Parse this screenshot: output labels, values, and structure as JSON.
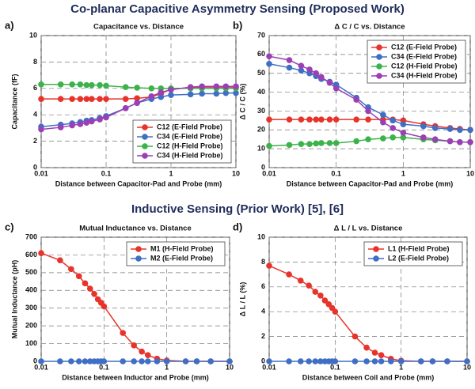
{
  "headings": [
    "Co-planar Capacitive Asymmetry Sensing (Proposed Work)",
    "Inductive Sensing (Prior Work) [5], [6]"
  ],
  "chart_data": [
    {
      "type": "line",
      "label": "a)",
      "title": "Capacitance vs. Distance",
      "xlabel": "Distance between Capacitor-Pad and Probe (mm)",
      "ylabel": "Capacitance (fF)",
      "xscale": "log",
      "xlim": [
        0.01,
        10
      ],
      "xticks": [
        0.01,
        0.1,
        1,
        10
      ],
      "ylim": [
        0,
        10
      ],
      "yticks": [
        0,
        2,
        4,
        6,
        8,
        10
      ],
      "grid": true,
      "legend": "lower right",
      "x": [
        0.01,
        0.02,
        0.03,
        0.04,
        0.05,
        0.06,
        0.08,
        0.1,
        0.2,
        0.3,
        0.5,
        0.7,
        1,
        2,
        3,
        5,
        7,
        10
      ],
      "series": [
        {
          "name": "C12 (E-Field Probe)",
          "color": "#e8332a",
          "values": [
            5.2,
            5.2,
            5.2,
            5.2,
            5.2,
            5.2,
            5.2,
            5.2,
            5.2,
            5.25,
            5.35,
            5.6,
            5.95,
            6.05,
            6.1,
            6.1,
            6.1,
            6.1
          ]
        },
        {
          "name": "C34 (E-Field Probe)",
          "color": "#3f6fc4",
          "values": [
            3.1,
            3.25,
            3.35,
            3.45,
            3.55,
            3.6,
            3.75,
            3.9,
            4.5,
            4.9,
            5.2,
            5.35,
            5.5,
            5.55,
            5.6,
            5.6,
            5.65,
            5.65
          ]
        },
        {
          "name": "C12 (H-Field Probe)",
          "color": "#3cb34a",
          "values": [
            6.3,
            6.3,
            6.3,
            6.3,
            6.25,
            6.25,
            6.25,
            6.2,
            6.1,
            6.05,
            6.0,
            6.0,
            6.0,
            6.0,
            6.0,
            6.0,
            6.0,
            6.0
          ]
        },
        {
          "name": "C34 (H-Field Probe)",
          "color": "#9b3fb5",
          "values": [
            2.9,
            3.05,
            3.2,
            3.3,
            3.4,
            3.5,
            3.65,
            3.8,
            4.5,
            4.9,
            5.4,
            5.7,
            5.9,
            6.1,
            6.15,
            6.15,
            6.15,
            6.15
          ]
        }
      ]
    },
    {
      "type": "line",
      "label": "b)",
      "title": "Δ C / C vs. Distance",
      "xlabel": "Distance between Capacitor-Pad and Probe (mm)",
      "ylabel": "Δ C / C (%)",
      "xscale": "log",
      "xlim": [
        0.01,
        10
      ],
      "xticks": [
        0.01,
        0.1,
        1,
        10
      ],
      "ylim": [
        0,
        70
      ],
      "yticks": [
        0,
        10,
        20,
        30,
        40,
        50,
        60,
        70
      ],
      "grid": true,
      "legend": "upper right",
      "x": [
        0.01,
        0.02,
        0.03,
        0.04,
        0.05,
        0.06,
        0.08,
        0.1,
        0.2,
        0.3,
        0.5,
        0.7,
        1,
        2,
        3,
        5,
        7,
        10
      ],
      "series": [
        {
          "name": "C12 (E-Field Probe)",
          "color": "#e8332a",
          "values": [
            25.5,
            25.5,
            25.5,
            25.5,
            25.5,
            25.5,
            25.5,
            25.5,
            25.5,
            25.5,
            25.5,
            25.5,
            25,
            23,
            22,
            21,
            20.5,
            20
          ]
        },
        {
          "name": "C34 (E-Field Probe)",
          "color": "#3f6fc4",
          "values": [
            55,
            53,
            51.5,
            50,
            48.5,
            47,
            45.5,
            44,
            37,
            32,
            28,
            25,
            23,
            22,
            21,
            20.5,
            20,
            20
          ]
        },
        {
          "name": "C12 (H-Field Probe)",
          "color": "#3cb34a",
          "values": [
            11.5,
            12,
            12.5,
            12.5,
            12.8,
            13,
            13,
            13,
            14,
            15,
            15.5,
            16,
            16,
            15,
            14.5,
            14,
            13.5,
            13.5
          ]
        },
        {
          "name": "C34 (H-Field Probe)",
          "color": "#9b3fb5",
          "values": [
            59,
            57,
            54,
            52,
            50,
            48,
            45,
            42,
            36,
            30,
            24,
            21,
            18.5,
            16,
            15,
            14,
            13.5,
            13.5
          ]
        }
      ]
    },
    {
      "type": "line",
      "label": "c)",
      "title": "Mutual Inductance vs. Distance",
      "xlabel": "Distance between Inductor and Probe (mm)",
      "ylabel": "Mutual Inductance (pH)",
      "xscale": "log",
      "xlim": [
        0.01,
        10
      ],
      "xticks": [
        0.01,
        0.1,
        1,
        10
      ],
      "ylim": [
        0,
        700
      ],
      "yticks": [
        0,
        100,
        200,
        300,
        400,
        500,
        600,
        700
      ],
      "grid": true,
      "legend": "upper right",
      "x": [
        0.01,
        0.02,
        0.03,
        0.04,
        0.05,
        0.06,
        0.07,
        0.08,
        0.09,
        0.1,
        0.2,
        0.3,
        0.4,
        0.5,
        0.7,
        1,
        2,
        3,
        5,
        10
      ],
      "series": [
        {
          "name": "M1 (H-Field Probe)",
          "color": "#e8332a",
          "values": [
            610,
            570,
            520,
            480,
            440,
            410,
            380,
            350,
            330,
            310,
            160,
            90,
            55,
            35,
            15,
            5,
            0,
            0,
            0,
            0
          ]
        },
        {
          "name": "M2 (E-Field Probe)",
          "color": "#3f6fc4",
          "values": [
            0,
            0,
            0,
            0,
            0,
            0,
            0,
            0,
            0,
            0,
            0,
            0,
            0,
            0,
            0,
            0,
            0,
            0,
            0,
            0
          ]
        }
      ]
    },
    {
      "type": "line",
      "label": "d)",
      "title": "Δ L / L vs. Distance",
      "xlabel": "Distance between Coil and Probe (mm)",
      "ylabel": "Δ L / L (%)",
      "xscale": "log",
      "xlim": [
        0.01,
        10
      ],
      "xticks": [
        0.01,
        0.1,
        1,
        10
      ],
      "ylim": [
        0,
        10
      ],
      "yticks": [
        0,
        2,
        4,
        6,
        8,
        10
      ],
      "grid": true,
      "legend": "upper right",
      "x": [
        0.01,
        0.02,
        0.03,
        0.04,
        0.05,
        0.06,
        0.07,
        0.08,
        0.09,
        0.1,
        0.2,
        0.3,
        0.4,
        0.5,
        0.7,
        1,
        2,
        3,
        5,
        10
      ],
      "series": [
        {
          "name": "L1 (H-Field Probe)",
          "color": "#e8332a",
          "values": [
            7.7,
            7.0,
            6.5,
            6.1,
            5.6,
            5.3,
            4.9,
            4.6,
            4.3,
            4.0,
            2.0,
            1.1,
            0.7,
            0.5,
            0.2,
            0.05,
            0,
            0,
            0,
            0
          ]
        },
        {
          "name": "L2 (E-Field Probe)",
          "color": "#3f6fc4",
          "values": [
            0,
            0,
            0,
            0,
            0,
            0,
            0,
            0,
            0,
            0,
            0,
            0,
            0,
            0,
            0,
            0,
            0,
            0,
            0,
            0
          ]
        }
      ]
    }
  ]
}
